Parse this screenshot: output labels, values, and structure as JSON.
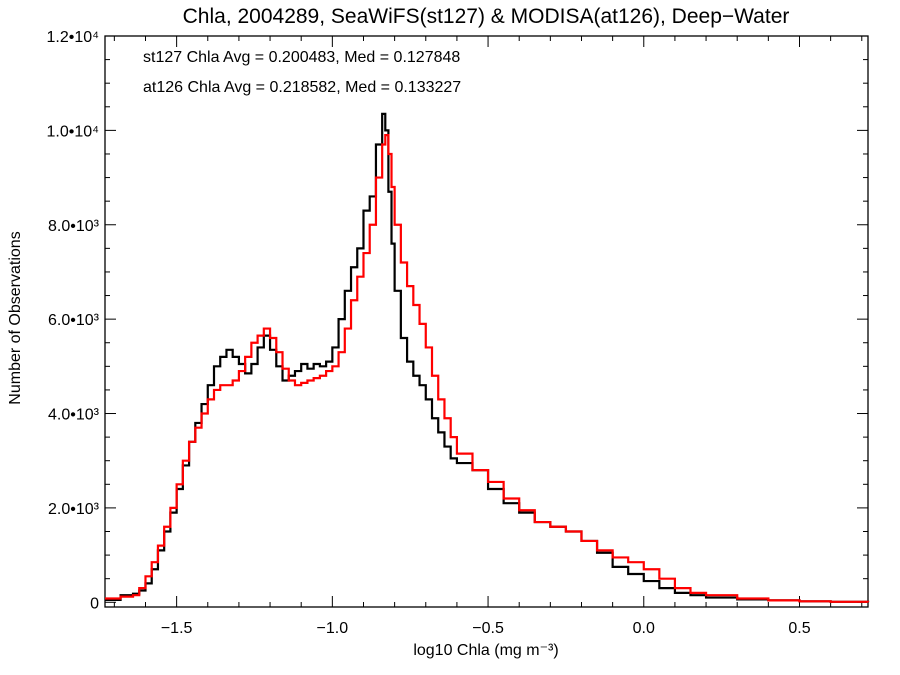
{
  "chart_data": {
    "type": "line",
    "title": "Chla, 2004289, SeaWiFS(st127) & MODISA(at126), Deep−Water",
    "xlabel": "log10 Chla (mg m⁻³)",
    "ylabel": "Number of Observations",
    "xlim": [
      -1.73,
      0.72
    ],
    "ylim": [
      -100,
      12000
    ],
    "x_ticks": [
      {
        "value": -1.5,
        "label": "−1.5"
      },
      {
        "value": -1.0,
        "label": "−1.0"
      },
      {
        "value": -0.5,
        "label": "−0.5"
      },
      {
        "value": 0.0,
        "label": "0.0"
      },
      {
        "value": 0.5,
        "label": "0.5"
      }
    ],
    "y_ticks": [
      {
        "value": 0,
        "label": "0"
      },
      {
        "value": 2000,
        "label": "2.0•10³"
      },
      {
        "value": 4000,
        "label": "4.0•10³"
      },
      {
        "value": 6000,
        "label": "6.0•10³"
      },
      {
        "value": 8000,
        "label": "8.0•10³"
      },
      {
        "value": 10000,
        "label": "1.0•10⁴"
      },
      {
        "value": 12000,
        "label": "1.2•10⁴"
      }
    ],
    "annotations": [
      {
        "text": "st127 Chla Avg = 0.200483, Med = 0.127848",
        "color": "#000000"
      },
      {
        "text": "at126 Chla Avg = 0.218582, Med = 0.133227",
        "color": "#ff0000"
      }
    ],
    "series": [
      {
        "color": "#000000",
        "x": [
          -1.73,
          -1.68,
          -1.64,
          -1.62,
          -1.6,
          -1.58,
          -1.56,
          -1.54,
          -1.52,
          -1.5,
          -1.48,
          -1.46,
          -1.44,
          -1.42,
          -1.4,
          -1.38,
          -1.36,
          -1.34,
          -1.32,
          -1.3,
          -1.28,
          -1.26,
          -1.24,
          -1.22,
          -1.2,
          -1.18,
          -1.16,
          -1.14,
          -1.12,
          -1.1,
          -1.08,
          -1.06,
          -1.04,
          -1.02,
          -1.0,
          -0.98,
          -0.96,
          -0.94,
          -0.92,
          -0.9,
          -0.88,
          -0.86,
          -0.84,
          -0.83,
          -0.82,
          -0.81,
          -0.8,
          -0.78,
          -0.76,
          -0.74,
          -0.72,
          -0.7,
          -0.68,
          -0.66,
          -0.64,
          -0.62,
          -0.6,
          -0.55,
          -0.5,
          -0.45,
          -0.4,
          -0.35,
          -0.3,
          -0.25,
          -0.2,
          -0.15,
          -0.1,
          -0.05,
          0.0,
          0.05,
          0.1,
          0.15,
          0.2,
          0.3,
          0.4,
          0.5,
          0.6,
          0.72
        ],
        "y": [
          50,
          150,
          180,
          250,
          400,
          700,
          1100,
          1500,
          1900,
          2400,
          2900,
          3400,
          3800,
          4200,
          4600,
          5000,
          5200,
          5350,
          5200,
          5050,
          4850,
          5050,
          5400,
          5650,
          5350,
          5000,
          4700,
          4800,
          4900,
          5050,
          4950,
          5050,
          5000,
          5100,
          5400,
          6000,
          6600,
          7100,
          7500,
          8300,
          8600,
          9700,
          10350,
          10000,
          8700,
          7600,
          6600,
          5600,
          5100,
          4800,
          4600,
          4300,
          3900,
          3600,
          3300,
          3050,
          2950,
          2800,
          2400,
          2100,
          1900,
          1700,
          1600,
          1500,
          1300,
          1050,
          750,
          600,
          450,
          300,
          200,
          150,
          100,
          60,
          40,
          20,
          10,
          0
        ]
      },
      {
        "color": "#ff0000",
        "x": [
          -1.73,
          -1.68,
          -1.64,
          -1.62,
          -1.6,
          -1.58,
          -1.56,
          -1.54,
          -1.52,
          -1.5,
          -1.48,
          -1.46,
          -1.44,
          -1.42,
          -1.4,
          -1.38,
          -1.36,
          -1.34,
          -1.32,
          -1.3,
          -1.28,
          -1.26,
          -1.24,
          -1.22,
          -1.2,
          -1.18,
          -1.16,
          -1.14,
          -1.12,
          -1.1,
          -1.08,
          -1.06,
          -1.04,
          -1.02,
          -1.0,
          -0.98,
          -0.96,
          -0.94,
          -0.92,
          -0.9,
          -0.88,
          -0.86,
          -0.84,
          -0.83,
          -0.82,
          -0.81,
          -0.8,
          -0.78,
          -0.76,
          -0.74,
          -0.72,
          -0.7,
          -0.68,
          -0.66,
          -0.64,
          -0.62,
          -0.6,
          -0.55,
          -0.5,
          -0.45,
          -0.4,
          -0.35,
          -0.3,
          -0.25,
          -0.2,
          -0.15,
          -0.1,
          -0.05,
          0.0,
          0.05,
          0.1,
          0.15,
          0.2,
          0.3,
          0.4,
          0.5,
          0.6,
          0.72
        ],
        "y": [
          80,
          120,
          150,
          300,
          550,
          850,
          1200,
          1600,
          2000,
          2500,
          3000,
          3400,
          3700,
          4000,
          4300,
          4500,
          4600,
          4600,
          4700,
          4900,
          5200,
          5500,
          5650,
          5800,
          5600,
          5300,
          4950,
          4700,
          4600,
          4650,
          4700,
          4750,
          4800,
          4900,
          5000,
          5300,
          5800,
          6400,
          6900,
          7400,
          8000,
          9000,
          9700,
          9900,
          9500,
          8800,
          8000,
          7200,
          6700,
          6300,
          5900,
          5400,
          4800,
          4300,
          3900,
          3500,
          3150,
          2800,
          2550,
          2200,
          1950,
          1700,
          1600,
          1500,
          1300,
          1100,
          950,
          850,
          700,
          500,
          300,
          200,
          150,
          80,
          40,
          20,
          10,
          0
        ]
      }
    ]
  }
}
